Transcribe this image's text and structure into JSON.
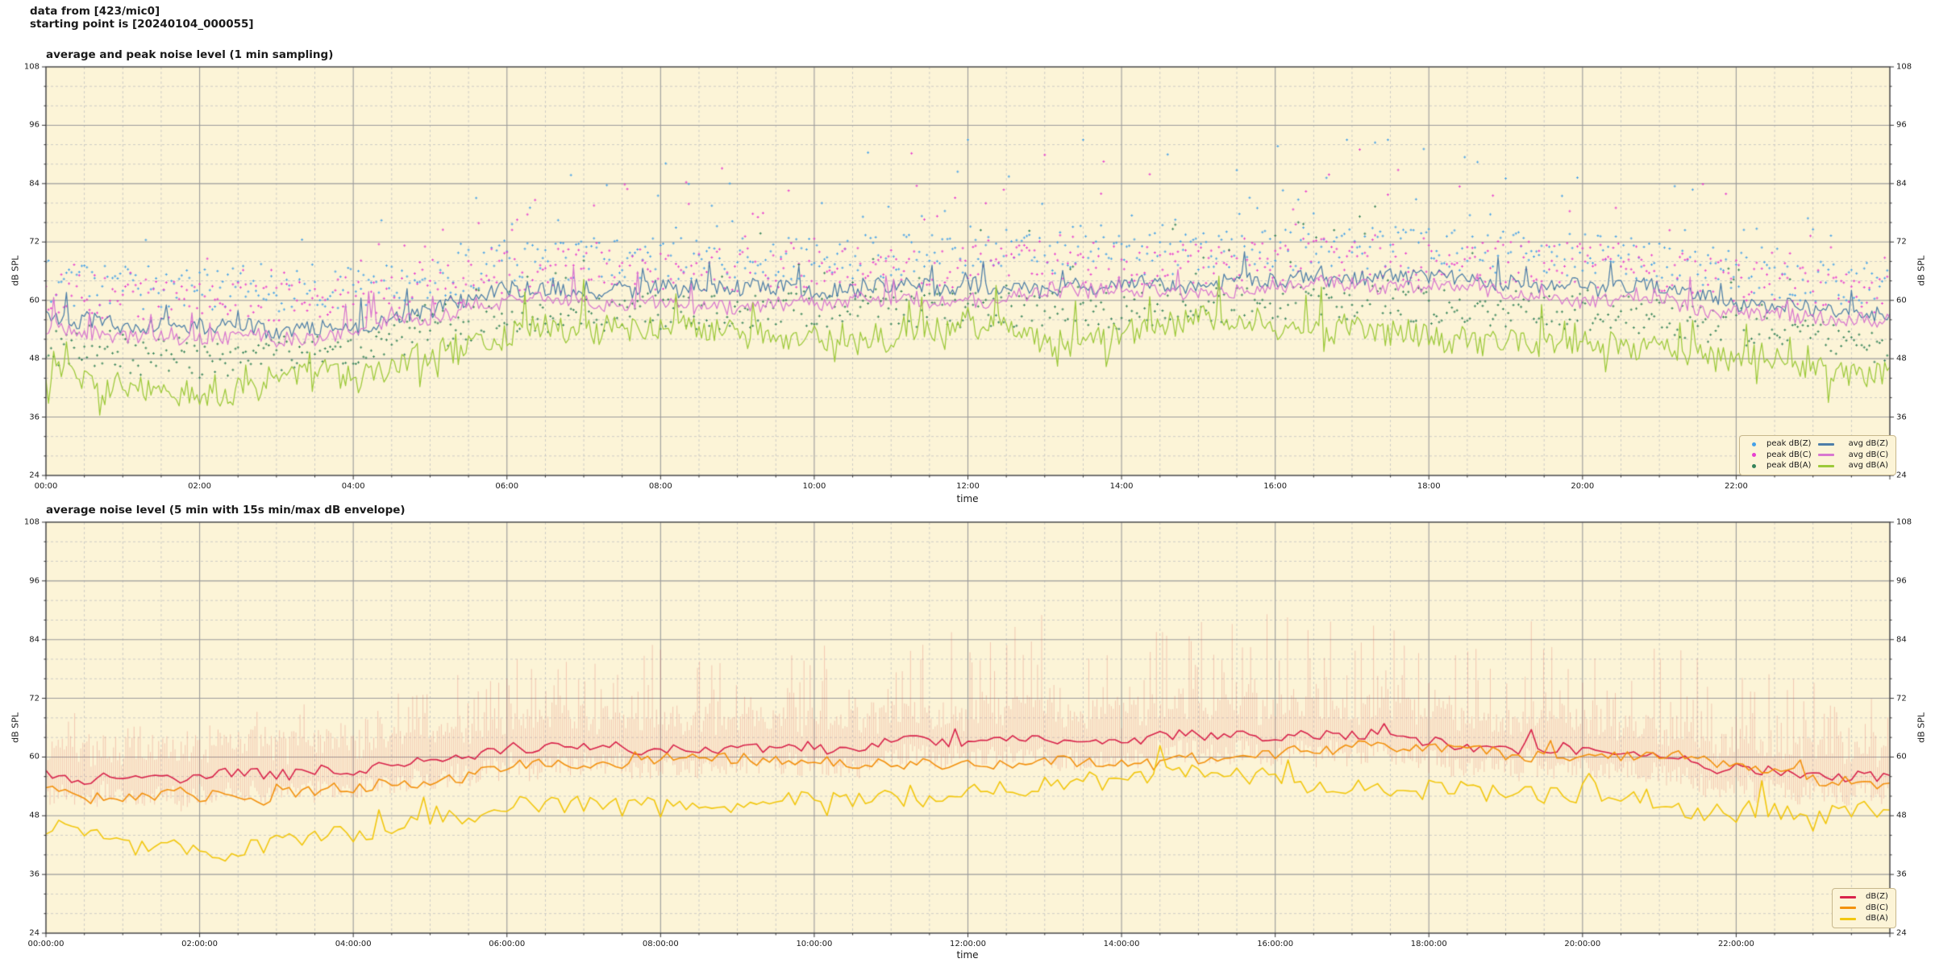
{
  "header": {
    "line1": "data from [423/mic0]",
    "line2": "starting point is [20240104_000055]"
  },
  "colors": {
    "figure_bg": "#ffffff",
    "plot_bg": "#fcf4d7",
    "grid_major": "#9b9b9b",
    "grid_minor": "#c2c2c2",
    "spine": "#3c3c3c",
    "tick": "#333333",
    "text": "#1a1a1a",
    "legend_bg": "#fcf4d7",
    "legend_border": "#c7b78c"
  },
  "chart_data": [
    {
      "type": "line+scatter",
      "title": "average and peak noise level (1 min sampling)",
      "xlabel": "time",
      "ylabel_left": "dB SPL",
      "ylabel_right": "dB SPL",
      "ylim": [
        24,
        108
      ],
      "yticks": [
        24,
        36,
        48,
        60,
        72,
        84,
        96,
        108
      ],
      "y_minor_step": 4,
      "x_range_hours": [
        0,
        24
      ],
      "x_major_tick_hours": 2,
      "x_minor_tick_hours": 0.5,
      "xtick_labels": [
        "00:00",
        "02:00",
        "04:00",
        "06:00",
        "08:00",
        "10:00",
        "12:00",
        "14:00",
        "16:00",
        "18:00",
        "20:00",
        "22:00"
      ],
      "grid": "major-solid-minor-dashed",
      "legend_position": "lower right",
      "seed": 20240104,
      "anchor_hours": [
        0,
        1,
        2,
        3,
        4,
        5,
        6,
        7,
        8,
        9,
        10,
        11,
        12,
        13,
        14,
        15,
        16,
        17,
        18,
        19,
        20,
        21,
        22,
        23,
        24
      ],
      "tall_hourly": [
        0.35,
        0.3,
        0.3,
        0.3,
        0.35,
        0.5,
        0.65,
        0.7,
        0.7,
        0.75,
        0.75,
        0.8,
        0.8,
        0.85,
        0.85,
        1.0,
        1.15,
        1.15,
        1.0,
        0.95,
        0.95,
        0.9,
        0.8,
        0.6,
        0.45
      ],
      "series": [
        {
          "name": "peak dB(Z)",
          "kind": "scatter",
          "color": "#45a1e8",
          "marker": "plus",
          "step_min": 2,
          "base_hourly": [
            56.5,
            55.5,
            55.0,
            55.0,
            55.5,
            57.5,
            61.0,
            61.5,
            61.5,
            61.5,
            62.0,
            62.0,
            62.0,
            62.5,
            62.5,
            63.0,
            63.5,
            64.0,
            63.5,
            63.0,
            62.5,
            61.5,
            59.0,
            57.0,
            56.0
          ],
          "off_base": 2.5,
          "off_spread": 9,
          "spike_p": 0.22,
          "spike_amp": 26,
          "max_db": 93
        },
        {
          "name": "peak dB(C)",
          "kind": "scatter",
          "color": "#e83fd0",
          "marker": "plus",
          "step_min": 2,
          "base_hourly": [
            54.8,
            53.8,
            53.3,
            53.3,
            53.8,
            55.8,
            59.3,
            59.8,
            59.8,
            59.8,
            60.3,
            60.3,
            60.3,
            60.8,
            60.8,
            61.3,
            61.8,
            62.3,
            61.8,
            61.3,
            60.8,
            59.8,
            57.3,
            55.3,
            54.3
          ],
          "off_base": 2.0,
          "off_spread": 9,
          "spike_p": 0.2,
          "spike_amp": 24,
          "max_db": 91
        },
        {
          "name": "peak dB(A)",
          "kind": "scatter",
          "color": "#35835a",
          "marker": "plus",
          "step_min": 2,
          "base_hourly": [
            45.5,
            44.0,
            42.5,
            44.5,
            45.5,
            49.0,
            51.5,
            52.5,
            53.0,
            53.0,
            53.5,
            53.5,
            53.0,
            53.5,
            53.0,
            54.0,
            54.5,
            55.0,
            54.0,
            53.5,
            53.0,
            52.0,
            49.5,
            47.5,
            46.0
          ],
          "off_base": 1.0,
          "off_spread": 7.5,
          "spike_p": 0.15,
          "spike_amp": 17,
          "max_db": 80
        },
        {
          "name": "avg dB(Z)",
          "kind": "line",
          "color": "#4d7ea8",
          "width": 1.25,
          "step_min": 2,
          "hourly_values": [
            56.5,
            55.5,
            55.0,
            55.0,
            55.5,
            57.5,
            61.0,
            61.5,
            61.5,
            61.5,
            62.0,
            62.0,
            62.0,
            62.5,
            62.5,
            63.0,
            63.5,
            64.0,
            63.5,
            63.0,
            62.5,
            61.5,
            59.0,
            57.0,
            56.0
          ],
          "jitter": 1.6,
          "walk": 0.4,
          "walk_max": 1.5,
          "spike_p": 0.05,
          "spike": 5.5,
          "dip_p": 0.0,
          "dip": 0
        },
        {
          "name": "avg dB(C)",
          "kind": "line",
          "color": "#d877cf",
          "width": 1.25,
          "step_min": 2,
          "hourly_values": [
            54.8,
            53.8,
            53.3,
            53.3,
            53.8,
            55.8,
            59.3,
            59.8,
            59.8,
            59.8,
            60.3,
            60.3,
            60.3,
            60.8,
            60.8,
            61.3,
            61.8,
            62.3,
            61.8,
            61.3,
            60.8,
            59.8,
            57.3,
            55.3,
            54.3
          ],
          "jitter": 1.5,
          "walk": 0.4,
          "walk_max": 1.5,
          "spike_p": 0.05,
          "spike": 6.5,
          "dip_p": 0.0,
          "dip": 0
        },
        {
          "name": "avg dB(A)",
          "kind": "line",
          "color": "#9cc939",
          "width": 1.25,
          "step_min": 2,
          "hourly_values": [
            45.5,
            44.0,
            42.5,
            44.5,
            45.5,
            49.0,
            51.5,
            52.5,
            53.0,
            53.0,
            53.5,
            53.5,
            53.0,
            53.5,
            53.0,
            54.0,
            54.5,
            55.0,
            54.0,
            53.5,
            53.0,
            52.0,
            49.5,
            47.5,
            46.0
          ],
          "jitter": 2.6,
          "walk": 0.7,
          "walk_max": 3.0,
          "spike_p": 0.07,
          "spike": 8,
          "dip_p": 0.05,
          "dip": 5
        }
      ],
      "legend": [
        {
          "marker": "dot",
          "label": "peak dB(Z)",
          "color": "#45a1e8"
        },
        {
          "marker": "line",
          "label": "avg dB(Z)",
          "color": "#4d7ea8"
        },
        {
          "marker": "dot",
          "label": "peak dB(C)",
          "color": "#e83fd0"
        },
        {
          "marker": "line",
          "label": "avg dB(C)",
          "color": "#d877cf"
        },
        {
          "marker": "dot",
          "label": "peak dB(A)",
          "color": "#35835a"
        },
        {
          "marker": "line",
          "label": "avg dB(A)",
          "color": "#9cc939"
        }
      ]
    },
    {
      "type": "line+envelope",
      "title": "average noise level (5 min with 15s min/max dB envelope)",
      "xlabel": "time",
      "ylabel_left": "dB SPL",
      "ylabel_right": "dB SPL",
      "ylim": [
        24,
        108
      ],
      "yticks": [
        24,
        36,
        48,
        60,
        72,
        84,
        96,
        108
      ],
      "y_minor_step": 4,
      "x_range_hours": [
        0,
        24
      ],
      "x_major_tick_hours": 2,
      "x_minor_tick_hours": 0.5,
      "xtick_labels": [
        "00:00:00",
        "02:00:00",
        "04:00:00",
        "06:00:00",
        "08:00:00",
        "10:00:00",
        "12:00:00",
        "14:00:00",
        "16:00:00",
        "18:00:00",
        "20:00:00",
        "22:00:00"
      ],
      "grid": "major-solid-minor-dashed",
      "legend_position": "lower right",
      "seed": 55,
      "anchor_hours": [
        0,
        1,
        2,
        3,
        4,
        5,
        6,
        7,
        8,
        9,
        10,
        11,
        12,
        13,
        14,
        15,
        16,
        17,
        18,
        19,
        20,
        21,
        22,
        23,
        24
      ],
      "tall_hourly": [
        0.35,
        0.3,
        0.3,
        0.3,
        0.35,
        0.5,
        0.65,
        0.7,
        0.7,
        0.75,
        0.75,
        0.8,
        0.8,
        0.85,
        0.85,
        1.0,
        1.15,
        1.15,
        1.0,
        0.95,
        0.95,
        0.9,
        0.8,
        0.6,
        0.45
      ],
      "envelope": {
        "of_series": "dB(Z)",
        "color": "rgba(221,97,88,0.30)",
        "step_min": 1.6,
        "up_base": 2.5,
        "up_spread": 6,
        "up_spike_p": 0.45,
        "up_spike_amp": 20,
        "down_base": 1.5,
        "down_spread": 4.5
      },
      "series": [
        {
          "name": "dB(Z)",
          "kind": "line",
          "color": "#d8234b",
          "width": 1.6,
          "step_min": 5,
          "hourly_values": [
            56.5,
            55.5,
            55.0,
            55.0,
            55.5,
            57.5,
            61.0,
            61.5,
            61.5,
            61.5,
            62.0,
            62.0,
            62.0,
            62.5,
            62.5,
            63.0,
            63.5,
            64.0,
            63.5,
            63.0,
            62.5,
            61.5,
            59.0,
            57.0,
            56.0
          ],
          "jitter": 1.1,
          "walk": 0.5,
          "walk_max": 2.0,
          "spike_p": 0.05,
          "spike": 3.5,
          "dip_p": 0.0,
          "dip": 0
        },
        {
          "name": "dB(C)",
          "kind": "line",
          "color": "#f3910e",
          "width": 1.6,
          "step_min": 5,
          "hourly_values": [
            54.0,
            53.0,
            52.5,
            52.5,
            53.0,
            55.0,
            58.5,
            59.0,
            59.0,
            59.0,
            59.5,
            59.5,
            59.5,
            60.0,
            60.0,
            60.5,
            61.0,
            61.5,
            61.0,
            60.5,
            60.0,
            59.0,
            56.5,
            54.5,
            53.5
          ],
          "jitter": 1.1,
          "walk": 0.5,
          "walk_max": 2.0,
          "spike_p": 0.04,
          "spike": 3.0,
          "dip_p": 0.0,
          "dip": 0
        },
        {
          "name": "dB(A)",
          "kind": "line",
          "color": "#f2c70f",
          "width": 1.6,
          "step_min": 5,
          "hourly_values": [
            45.5,
            44.0,
            42.5,
            44.5,
            45.5,
            49.0,
            51.5,
            52.5,
            53.0,
            53.0,
            53.5,
            53.5,
            53.0,
            53.5,
            53.0,
            54.0,
            54.5,
            55.0,
            54.0,
            53.5,
            53.0,
            52.0,
            49.5,
            47.5,
            46.0
          ],
          "jitter": 1.9,
          "walk": 0.8,
          "walk_max": 3.5,
          "spike_p": 0.06,
          "spike": 6,
          "dip_p": 0.05,
          "dip": 4
        }
      ],
      "legend": [
        {
          "marker": "line",
          "label": "dB(Z)",
          "color": "#d8234b"
        },
        {
          "marker": "line",
          "label": "dB(C)",
          "color": "#f3910e"
        },
        {
          "marker": "line",
          "label": "dB(A)",
          "color": "#f2c70f"
        }
      ]
    }
  ]
}
